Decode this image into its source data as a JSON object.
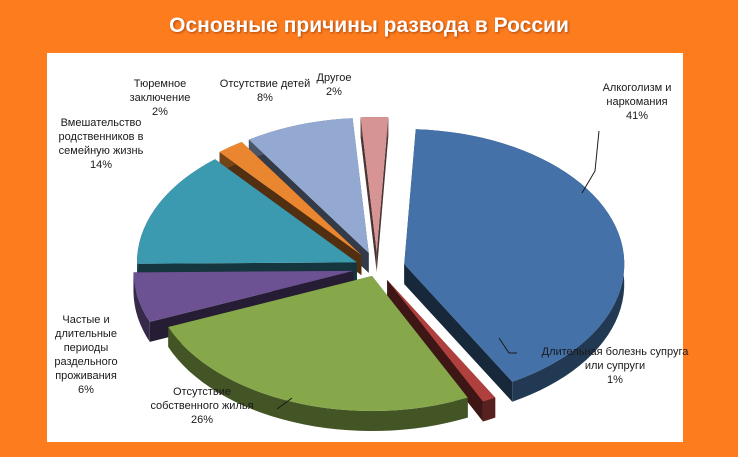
{
  "title": "Основные причины развода в России",
  "chart_data": {
    "type": "pie",
    "title": "Основные причины развода в России",
    "labels": [
      "Алкоголизм и наркомания",
      "Длительная болезнь супруга или супруги",
      "Отсутствие собственного жилья",
      "Частые и длительные периоды раздельного проживания",
      "Вмешательство родственников в семейную жизнь",
      "Тюремное заключение",
      "Отсутствие детей",
      "Другое"
    ],
    "values": [
      41,
      1,
      26,
      6,
      14,
      2,
      8,
      2
    ],
    "value_labels": [
      "41%",
      "1%",
      "26%",
      "6%",
      "14%",
      "2%",
      "8%",
      "2%"
    ],
    "colors": [
      "#4371a8",
      "#b0403d",
      "#86a84a",
      "#6c5193",
      "#3b9ab0",
      "#e9862f",
      "#93a9d1",
      "#d79494"
    ],
    "exploded": true,
    "style": "3d"
  }
}
